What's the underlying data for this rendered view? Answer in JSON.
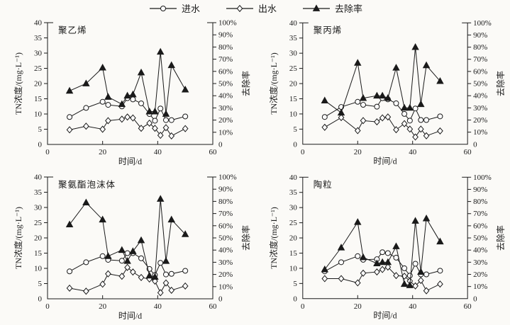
{
  "figure": {
    "background": "#fbfaf7",
    "ink": "#1a1a1a",
    "marker_fill_open": "#ffffff"
  },
  "legend": {
    "items": [
      {
        "label": "进水",
        "marker": "circle-open",
        "role": "influent"
      },
      {
        "label": "出水",
        "marker": "diamond-open",
        "role": "effluent"
      },
      {
        "label": "去除率",
        "marker": "triangle-filled",
        "role": "removal-rate"
      }
    ]
  },
  "axes_common": {
    "xlabel": "时间/d",
    "ylabel_left": "TN浓度/(mg·L⁻¹)",
    "ylabel_right": "去除率",
    "xlim": [
      0,
      60
    ],
    "xticks": [
      0,
      20,
      40,
      60
    ],
    "ylim_left": [
      0,
      40
    ],
    "yticks_left": [
      0,
      5,
      10,
      15,
      20,
      25,
      30,
      35,
      40
    ],
    "ylim_right_percent": [
      0,
      100
    ],
    "yticks_right_labels": [
      "0",
      "10%",
      "20%",
      "30%",
      "40%",
      "50%",
      "60%",
      "70%",
      "80%",
      "90%",
      "100%"
    ],
    "grid": "off",
    "legend_position": "top-center"
  },
  "chart_data": [
    {
      "type": "line",
      "title": "聚乙烯",
      "x": [
        8,
        14,
        20,
        22,
        27,
        29,
        31,
        34,
        37,
        39,
        41,
        43,
        45,
        50
      ],
      "series": [
        {
          "name": "进水",
          "role": "influent",
          "marker": "circle-open",
          "axis": "left",
          "unit": "mg/L",
          "values": [
            9,
            12,
            14,
            13,
            12.5,
            15.2,
            14.8,
            13.5,
            10,
            7.8,
            11.8,
            8,
            8,
            9.2
          ]
        },
        {
          "name": "出水",
          "role": "effluent",
          "marker": "diamond-open",
          "axis": "left",
          "unit": "mg/L",
          "values": [
            4.8,
            6,
            5,
            7.8,
            8.3,
            9,
            8.7,
            5.3,
            7,
            5.3,
            3,
            5.5,
            2.8,
            5.2
          ]
        },
        {
          "name": "去除率",
          "role": "removal-rate",
          "marker": "triangle-filled",
          "axis": "right",
          "unit": "%",
          "values": [
            44,
            50,
            63,
            39,
            33,
            40,
            41,
            59,
            27,
            27,
            76,
            25,
            65,
            45
          ]
        }
      ]
    },
    {
      "type": "line",
      "title": "聚丙烯",
      "x": [
        8,
        14,
        20,
        22,
        27,
        29,
        31,
        34,
        37,
        39,
        41,
        43,
        45,
        50
      ],
      "series": [
        {
          "name": "进水",
          "role": "influent",
          "marker": "circle-open",
          "axis": "left",
          "unit": "mg/L",
          "values": [
            9,
            12.3,
            14,
            13,
            12.4,
            15.2,
            14.8,
            13.5,
            10,
            7.8,
            11.8,
            8,
            8,
            9.2
          ]
        },
        {
          "name": "出水",
          "role": "effluent",
          "marker": "diamond-open",
          "axis": "left",
          "unit": "mg/L",
          "values": [
            5.6,
            8.8,
            4.5,
            7.8,
            7.4,
            8.7,
            9,
            4.8,
            6.8,
            5,
            2.4,
            5,
            2.8,
            4.4
          ]
        },
        {
          "name": "去除率",
          "role": "removal-rate",
          "marker": "triangle-filled",
          "axis": "right",
          "unit": "%",
          "values": [
            36,
            26,
            67,
            38,
            40,
            40,
            38,
            63,
            30,
            30,
            80,
            33,
            65,
            52
          ]
        }
      ]
    },
    {
      "type": "line",
      "title": "聚氨酯泡沫体",
      "x": [
        8,
        14,
        20,
        22,
        27,
        29,
        31,
        34,
        37,
        39,
        41,
        43,
        45,
        50
      ],
      "series": [
        {
          "name": "进水",
          "role": "influent",
          "marker": "circle-open",
          "axis": "left",
          "unit": "mg/L",
          "values": [
            9,
            12,
            14,
            12.8,
            12.5,
            15,
            15,
            13.3,
            9.8,
            7.8,
            11.8,
            8,
            8.2,
            9.2
          ]
        },
        {
          "name": "出水",
          "role": "effluent",
          "marker": "diamond-open",
          "axis": "left",
          "unit": "mg/L",
          "values": [
            3.5,
            2.5,
            4.8,
            8.2,
            7.4,
            10.3,
            8.8,
            7,
            6.5,
            5.8,
            2,
            5.2,
            2.8,
            4.2
          ]
        },
        {
          "name": "去除率",
          "role": "removal-rate",
          "marker": "triangle-filled",
          "axis": "right",
          "unit": "%",
          "values": [
            61,
            79,
            65,
            35,
            40,
            31,
            39,
            48,
            19,
            18,
            82,
            31,
            65,
            53
          ]
        }
      ]
    },
    {
      "type": "line",
      "title": "陶粒",
      "x": [
        8,
        14,
        20,
        22,
        27,
        29,
        31,
        34,
        37,
        39,
        41,
        43,
        45,
        50
      ],
      "series": [
        {
          "name": "进水",
          "role": "influent",
          "marker": "circle-open",
          "axis": "left",
          "unit": "mg/L",
          "values": [
            9,
            12,
            14,
            12.8,
            13,
            15.3,
            15,
            13.5,
            10,
            7.6,
            11.5,
            8,
            8,
            9.2
          ]
        },
        {
          "name": "出水",
          "role": "effluent",
          "marker": "diamond-open",
          "axis": "left",
          "unit": "mg/L",
          "values": [
            6.6,
            6.6,
            5.2,
            8.4,
            8.8,
            9.6,
            10.4,
            7.6,
            7.4,
            5.8,
            4.2,
            6,
            2.6,
            4.8
          ]
        },
        {
          "name": "去除率",
          "role": "removal-rate",
          "marker": "triangle-filled",
          "axis": "right",
          "unit": "%",
          "values": [
            24,
            42,
            63,
            34,
            29,
            30,
            30,
            43,
            12,
            11,
            64,
            22,
            66,
            47
          ]
        }
      ]
    }
  ]
}
